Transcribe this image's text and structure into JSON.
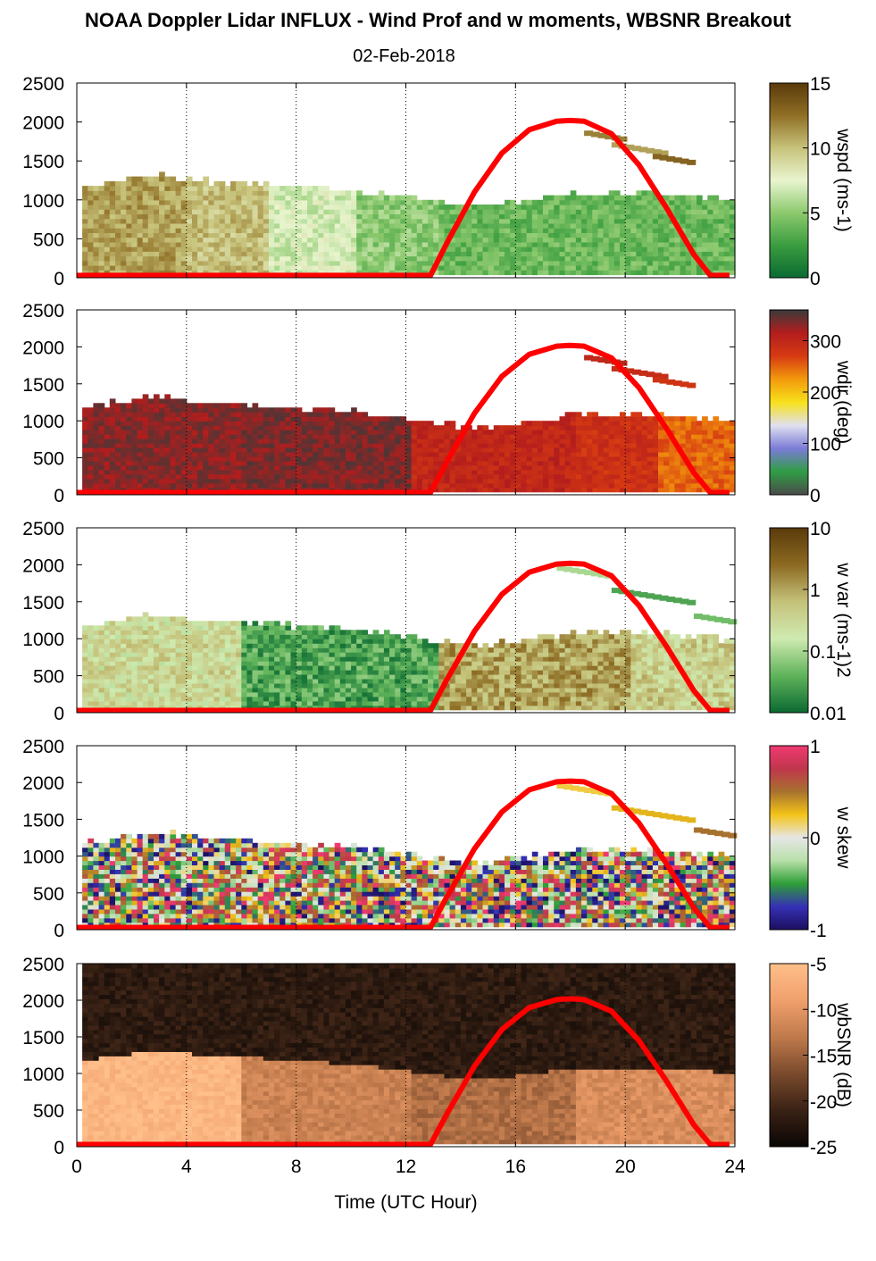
{
  "title": "NOAA Doppler Lidar INFLUX - Wind Prof and w moments, WBSNR Breakout",
  "subtitle": "02-Feb-2018",
  "chart_data": [
    {
      "type": "heatmap",
      "variable": "wspd",
      "colorbar_label": "wspd (ms-1)",
      "colorbar_ticks": [
        "0",
        "5",
        "10",
        "15"
      ],
      "clim": [
        0,
        15
      ],
      "colors": [
        "#0b6a32",
        "#3a9d3f",
        "#8cc96e",
        "#e9f5cf",
        "#c7c27a",
        "#8f6f25",
        "#5a3a0a"
      ],
      "xlabel": "Time (UTC Hour)",
      "xlim": [
        0,
        24
      ],
      "ylim": [
        0,
        2500
      ],
      "x_ticks": [
        "0",
        "4",
        "8",
        "12",
        "16",
        "20",
        "24"
      ],
      "y_ticks": [
        "0",
        "500",
        "1000",
        "1500",
        "2000",
        "2500"
      ],
      "grid": "vertical dotted at every 4 h",
      "boundary_layer_top": {
        "x": [
          0.2,
          2,
          3,
          4,
          5,
          6,
          8,
          10,
          12,
          13,
          14,
          15,
          16,
          17,
          18,
          19,
          20,
          21,
          22,
          23,
          23.8
        ],
        "y": [
          1150,
          1250,
          1300,
          1250,
          1200,
          1200,
          1150,
          1100,
          1000,
          950,
          900,
          900,
          950,
          1000,
          1050,
          1050,
          1050,
          1050,
          1020,
          1000,
          950
        ]
      },
      "field_summary": [
        {
          "t0": 0.2,
          "t1": 4,
          "value": 11
        },
        {
          "t0": 4,
          "t1": 7,
          "value": 10
        },
        {
          "t0": 7,
          "t1": 10,
          "value": 7
        },
        {
          "t0": 10,
          "t1": 13,
          "value": 5
        },
        {
          "t0": 13,
          "t1": 24,
          "value": 4
        }
      ],
      "aloft_segments": [
        {
          "x0": 18.5,
          "x1": 20,
          "y": 1850,
          "value": 12
        },
        {
          "x0": 19.5,
          "x1": 21.5,
          "y": 1700,
          "value": 11
        },
        {
          "x0": 21,
          "x1": 22.5,
          "y": 1550,
          "value": 13
        }
      ],
      "sun_elevation_curve": {
        "x": [
          0,
          12.9,
          13.5,
          14.5,
          15.5,
          16.5,
          17.5,
          18,
          18.5,
          19.5,
          20.5,
          21.5,
          22.5,
          23.1,
          23.8
        ],
        "y": [
          30,
          30,
          450,
          1100,
          1600,
          1900,
          2010,
          2020,
          2010,
          1850,
          1450,
          900,
          300,
          30,
          30
        ]
      }
    },
    {
      "type": "heatmap",
      "variable": "wdir",
      "colorbar_label": "wdir (deg)",
      "colorbar_ticks": [
        "0",
        "100",
        "200",
        "300"
      ],
      "clim": [
        0,
        360
      ],
      "colors": [
        "#4a4a4a",
        "#2f9e44",
        "#7b7bd8",
        "#e0e0f0",
        "#f7e11b",
        "#f39a0c",
        "#d63a12",
        "#b31d1d",
        "#3a3a3a"
      ],
      "xlim": [
        0,
        24
      ],
      "ylim": [
        0,
        2500
      ],
      "x_ticks": [
        "0",
        "4",
        "8",
        "12",
        "16",
        "20",
        "24"
      ],
      "y_ticks": [
        "0",
        "500",
        "1000",
        "1500",
        "2000",
        "2500"
      ],
      "grid": "vertical dotted at every 4 h",
      "field_summary": [
        {
          "t0": 0.2,
          "t1": 6,
          "value": 330
        },
        {
          "t0": 6,
          "t1": 12,
          "value": 335
        },
        {
          "t0": 12,
          "t1": 18,
          "value": 300
        },
        {
          "t0": 18,
          "t1": 21,
          "value": 285
        },
        {
          "t0": 21,
          "t1": 24,
          "value": 250
        }
      ],
      "aloft_segments": [
        {
          "x0": 18.5,
          "x1": 20,
          "y": 1850,
          "value": 300
        },
        {
          "x0": 19.5,
          "x1": 21.5,
          "y": 1700,
          "value": 290
        },
        {
          "x0": 21,
          "x1": 22.5,
          "y": 1550,
          "value": 280
        }
      ]
    },
    {
      "type": "heatmap",
      "variable": "w var",
      "colorbar_label": "w var (ms-1)2",
      "colorbar_ticks": [
        "0.01",
        "0.1",
        "1",
        "10"
      ],
      "scale": "log",
      "clim": [
        0.01,
        10
      ],
      "colors": [
        "#0b6a32",
        "#5fb35a",
        "#cfeab0",
        "#c5c27a",
        "#8c6a22",
        "#5a3a0a"
      ],
      "xlim": [
        0,
        24
      ],
      "ylim": [
        0,
        2500
      ],
      "x_ticks": [
        "0",
        "4",
        "8",
        "12",
        "16",
        "20",
        "24"
      ],
      "y_ticks": [
        "0",
        "500",
        "1000",
        "1500",
        "2000",
        "2500"
      ],
      "grid": "vertical dotted at every 4 h",
      "field_summary": [
        {
          "t0": 0.2,
          "t1": 6,
          "value": 0.3
        },
        {
          "t0": 6,
          "t1": 13,
          "value": 0.03
        },
        {
          "t0": 13,
          "t1": 20,
          "value": 1
        },
        {
          "t0": 20,
          "t1": 24,
          "value": 0.4
        }
      ],
      "aloft_segments": [
        {
          "x0": 17.5,
          "x1": 19.5,
          "y": 1950,
          "value": 0.1
        },
        {
          "x0": 19.5,
          "x1": 22.5,
          "y": 1650,
          "value": 0.03
        },
        {
          "x0": 22.5,
          "x1": 24,
          "y": 1300,
          "value": 0.05
        }
      ]
    },
    {
      "type": "heatmap",
      "variable": "w skew",
      "colorbar_label": "w skew",
      "colorbar_ticks": [
        "-1",
        "0",
        "1"
      ],
      "clim": [
        -1,
        1
      ],
      "colors": [
        "#1b0f5e",
        "#3530b5",
        "#2e9e37",
        "#b8e0a8",
        "#e6e6e6",
        "#f3c418",
        "#a7722e",
        "#c0364c",
        "#f03a72"
      ],
      "xlim": [
        0,
        24
      ],
      "ylim": [
        0,
        2500
      ],
      "x_ticks": [
        "0",
        "4",
        "8",
        "12",
        "16",
        "20",
        "24"
      ],
      "y_ticks": [
        "0",
        "500",
        "1000",
        "1500",
        "2000",
        "2500"
      ],
      "grid": "vertical dotted at every 4 h",
      "aloft_segments": [
        {
          "x0": 17.5,
          "x1": 19.5,
          "y": 1950,
          "value": 0.2
        },
        {
          "x0": 19.5,
          "x1": 22.5,
          "y": 1650,
          "value": 0.3
        },
        {
          "x0": 22.5,
          "x1": 24,
          "y": 1350,
          "value": 0.5
        }
      ]
    },
    {
      "type": "heatmap",
      "variable": "wbSNR",
      "colorbar_label": "wbSNR (dB)",
      "colorbar_ticks": [
        "-25",
        "-20",
        "-15",
        "-10",
        "-5"
      ],
      "clim": [
        -25,
        -5
      ],
      "colors": [
        "#0a0604",
        "#3a2215",
        "#7a4a2c",
        "#c07a4c",
        "#f0a06c",
        "#ffbf8a"
      ],
      "xlabel": "Time (UTC Hour)",
      "xlim": [
        0,
        24
      ],
      "ylim": [
        0,
        2500
      ],
      "x_ticks": [
        "0",
        "4",
        "8",
        "12",
        "16",
        "20",
        "24"
      ],
      "y_ticks": [
        "0",
        "500",
        "1000",
        "1500",
        "2000",
        "2500"
      ],
      "grid": "vertical dotted at every 4 h",
      "field_summary": [
        {
          "t0": 0.2,
          "t1": 6,
          "value": -6
        },
        {
          "t0": 6,
          "t1": 12,
          "value": -12
        },
        {
          "t0": 12,
          "t1": 18,
          "value": -14
        },
        {
          "t0": 18,
          "t1": 24,
          "value": -11
        }
      ]
    }
  ]
}
